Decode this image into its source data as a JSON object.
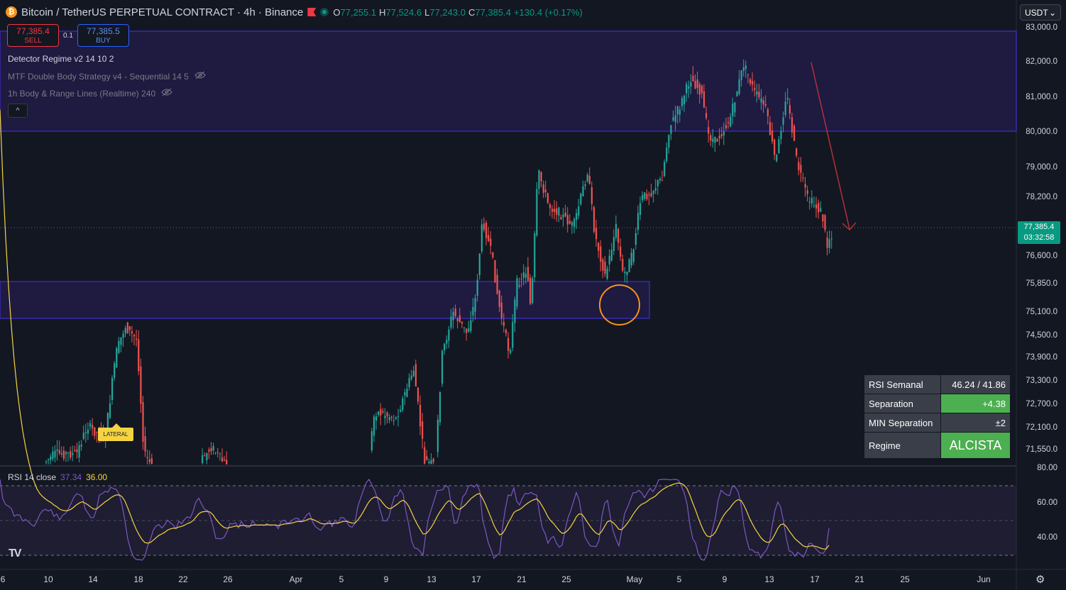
{
  "header": {
    "coin_glyph": "₿",
    "title": "Bitcoin / TetherUS PERPETUAL CONTRACT · 4h · Binance",
    "open_key": "O",
    "open": "77,255.1",
    "high_key": "H",
    "high": "77,524.6",
    "low_key": "L",
    "low": "77,243.0",
    "close_key": "C",
    "close": "77,385.4",
    "change": "+130.4 (+0.17%)"
  },
  "trade": {
    "sell_price": "77,385.4",
    "sell_label": "SELL",
    "spread": "0.1",
    "buy_price": "77,385.5",
    "buy_label": "BUY"
  },
  "indicators": {
    "regime": "Detector Regime v2 14 10 2",
    "mtf": "MTF Double Body Strategy v4 - Sequential 14 5",
    "body_range": "1h Body & Range Lines (Realtime) 240",
    "collapse_glyph": "^"
  },
  "currency": {
    "label": "USDT",
    "chevron": "⌄"
  },
  "price_axis": [
    "83,000.0",
    "82,000.0",
    "81,000.0",
    "80,000.0",
    "79,000.0",
    "78,200.0",
    "76,600.0",
    "75,850.0",
    "75,100.0",
    "74,500.0",
    "73,900.0",
    "73,300.0",
    "72,700.0",
    "72,100.0",
    "71,550.0"
  ],
  "current_price": {
    "price": "77,385.4",
    "countdown": "03:32:58"
  },
  "rsi": {
    "title": "RSI 14 close",
    "value": "37.34",
    "ma_value": "36.00",
    "axis": [
      "80.00",
      "60.00",
      "40.00"
    ]
  },
  "time_axis": [
    "6",
    "10",
    "14",
    "18",
    "22",
    "26",
    "Apr",
    "5",
    "9",
    "13",
    "17",
    "21",
    "25",
    "May",
    "5",
    "9",
    "13",
    "17",
    "21",
    "25",
    "Jun"
  ],
  "regime_table": {
    "rows": [
      {
        "key": "RSI Semanal",
        "value": "46.24 / 41.86"
      },
      {
        "key": "Separation",
        "value": "+4.38"
      },
      {
        "key": "MIN Separation",
        "value": "±2"
      },
      {
        "key": "Regime",
        "value": "ALCISTA"
      }
    ]
  },
  "lateral_label": "LATERAL",
  "tv_logo": "TV",
  "settings_glyph": "⚙",
  "colors": {
    "up": "#26a69a",
    "down": "#ef5350",
    "zone": "#5b2de0",
    "rsi": "#7e57c2",
    "rsi_ma": "#f5d442"
  }
}
